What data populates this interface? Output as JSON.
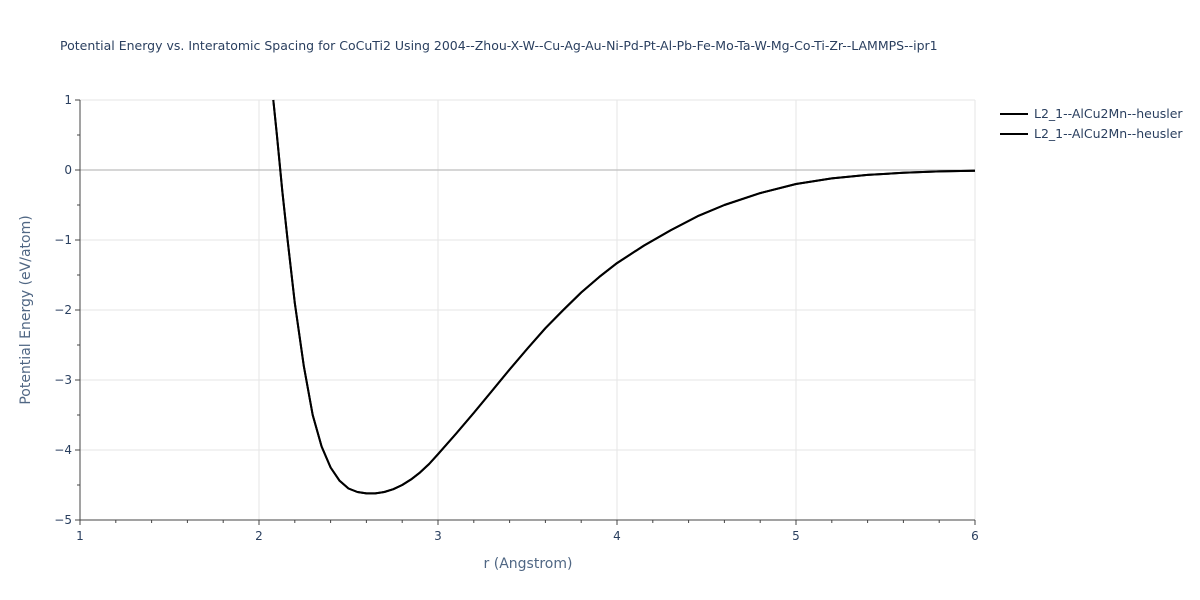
{
  "chart_data": {
    "type": "line",
    "title": "Potential Energy vs. Interatomic Spacing for CoCuTi2 Using 2004--Zhou-X-W--Cu-Ag-Au-Ni-Pd-Pt-Al-Pb-Fe-Mo-Ta-W-Mg-Co-Ti-Zr--LAMMPS--ipr1",
    "xlabel": "r (Angstrom)",
    "ylabel": "Potential Energy (eV/atom)",
    "xlim": [
      1,
      6
    ],
    "ylim": [
      -5,
      1
    ],
    "x_ticks": [
      1,
      2,
      3,
      4,
      5,
      6
    ],
    "y_ticks": [
      1,
      0,
      -1,
      -2,
      -3,
      -4,
      -5
    ],
    "x_tick_labels": [
      "1",
      "2",
      "3",
      "4",
      "5",
      "6"
    ],
    "y_tick_labels": [
      "1",
      "0",
      "−1",
      "−2",
      "−3",
      "−4",
      "−5"
    ],
    "grid": true,
    "legend_position": "top-right",
    "series": [
      {
        "name": "L2_1--AlCu2Mn--heusler",
        "color": "#000000",
        "x": [
          2.08,
          2.1,
          2.13,
          2.16,
          2.2,
          2.25,
          2.3,
          2.35,
          2.4,
          2.45,
          2.5,
          2.55,
          2.6,
          2.65,
          2.7,
          2.75,
          2.8,
          2.85,
          2.9,
          2.95,
          3.0,
          3.1,
          3.2,
          3.3,
          3.4,
          3.5,
          3.6,
          3.7,
          3.8,
          3.9,
          4.0,
          4.15,
          4.3,
          4.45,
          4.6,
          4.8,
          5.0,
          5.2,
          5.4,
          5.6,
          5.8,
          6.0
        ],
        "y": [
          1.0,
          0.5,
          -0.3,
          -1.0,
          -1.9,
          -2.8,
          -3.5,
          -3.95,
          -4.25,
          -4.44,
          -4.55,
          -4.6,
          -4.62,
          -4.62,
          -4.6,
          -4.56,
          -4.5,
          -4.42,
          -4.32,
          -4.2,
          -4.06,
          -3.77,
          -3.47,
          -3.16,
          -2.85,
          -2.55,
          -2.26,
          -2.0,
          -1.75,
          -1.53,
          -1.33,
          -1.08,
          -0.86,
          -0.66,
          -0.5,
          -0.33,
          -0.2,
          -0.12,
          -0.07,
          -0.04,
          -0.02,
          -0.01
        ]
      },
      {
        "name": "L2_1--AlCu2Mn--heusler",
        "color": "#000000",
        "x": [
          2.08,
          2.1,
          2.13,
          2.16,
          2.2,
          2.25,
          2.3,
          2.35,
          2.4,
          2.45,
          2.5,
          2.55,
          2.6,
          2.65,
          2.7,
          2.75,
          2.8,
          2.85,
          2.9,
          2.95,
          3.0,
          3.1,
          3.2,
          3.3,
          3.4,
          3.5,
          3.6,
          3.7,
          3.8,
          3.9,
          4.0,
          4.15,
          4.3,
          4.45,
          4.6,
          4.8,
          5.0,
          5.2,
          5.4,
          5.6,
          5.8,
          6.0
        ],
        "y": [
          1.0,
          0.5,
          -0.3,
          -1.0,
          -1.9,
          -2.8,
          -3.5,
          -3.95,
          -4.25,
          -4.44,
          -4.55,
          -4.6,
          -4.62,
          -4.62,
          -4.6,
          -4.56,
          -4.5,
          -4.42,
          -4.32,
          -4.2,
          -4.06,
          -3.77,
          -3.47,
          -3.16,
          -2.85,
          -2.55,
          -2.26,
          -2.0,
          -1.75,
          -1.53,
          -1.33,
          -1.08,
          -0.86,
          -0.66,
          -0.5,
          -0.33,
          -0.2,
          -0.12,
          -0.07,
          -0.04,
          -0.02,
          -0.01
        ]
      }
    ]
  }
}
